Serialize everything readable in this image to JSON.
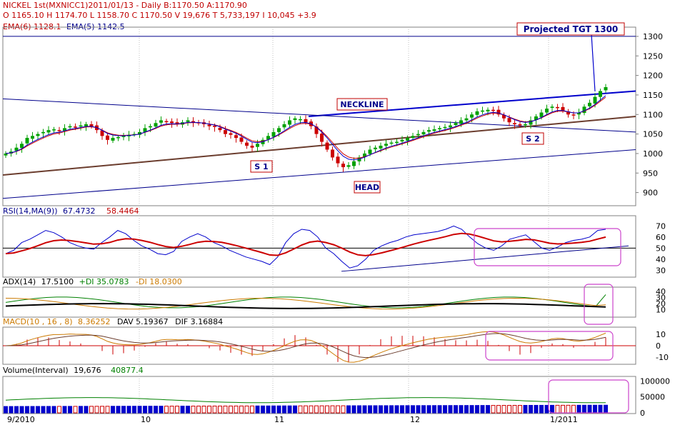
{
  "header": {
    "line1": "NICKEL 1st(MXNICC1)2011/01/13  - Daily B:1170.50 A:1170.90",
    "line2": "O 1165.10 H 1174.70 L 1158.70 C 1170.50 V 19,676 T 5,733,197 I 10,045 +3.9",
    "ema_line_a": "EMA(6) 1128.1",
    "ema_line_b": "EMA(5) 1142.5"
  },
  "price_panel": {
    "annotations": {
      "target": "Projected TGT 1300",
      "neckline": "NECKLINE",
      "s1": "S 1",
      "s2": "S 2",
      "head": "HEAD"
    },
    "y_ticks": [
      "1300",
      "1250",
      "1200",
      "1150",
      "1100",
      "1050",
      "1000",
      "950",
      "900"
    ]
  },
  "rsi_panel": {
    "label": "RSI(14,MA(9))",
    "value_a": "67.4732",
    "value_b": "58.4464",
    "y_ticks": [
      "70",
      "60",
      "50",
      "40",
      "30"
    ]
  },
  "adx_panel": {
    "label": "ADX(14)",
    "adx_value": "17.5100",
    "plus_di": "+DI  35.0783",
    "minus_di": "-DI  18.0300",
    "y_ticks": [
      "40",
      "30",
      "20",
      "10"
    ]
  },
  "macd_panel": {
    "label": "MACD(10 , 16 , 8)",
    "macd_value": "8.36252",
    "dav": "DAV  5.19367",
    "dif": "DIF  3.16884",
    "y_ticks": [
      "10",
      "0",
      "-10"
    ]
  },
  "volume_panel": {
    "label": "Volume(Interval)",
    "value_a": "19,676",
    "value_b": "40877.4",
    "y_ticks": [
      "100000",
      "50000",
      "0"
    ]
  },
  "x_axis": {
    "labels": [
      "9/2010",
      "10",
      "11",
      "12",
      "1/2011"
    ]
  },
  "colors": {
    "up": "#00a000",
    "down": "#cc0000",
    "trend": "#00008b",
    "support": "#6b3d2e",
    "highlight": "#cc44cc"
  },
  "chart_data": {
    "type": "candlestick",
    "title": "NICKEL 1st(MXNICC1) Daily",
    "ylim": [
      870,
      1320
    ],
    "closes": [
      1000,
      1005,
      1015,
      1025,
      1040,
      1045,
      1050,
      1055,
      1060,
      1062,
      1058,
      1065,
      1070,
      1068,
      1072,
      1075,
      1070,
      1060,
      1045,
      1035,
      1040,
      1042,
      1045,
      1048,
      1050,
      1055,
      1065,
      1070,
      1078,
      1085,
      1082,
      1078,
      1075,
      1080,
      1085,
      1080,
      1078,
      1075,
      1070,
      1068,
      1060,
      1050,
      1048,
      1040,
      1030,
      1020,
      1015,
      1025,
      1035,
      1045,
      1055,
      1065,
      1075,
      1085,
      1090,
      1088,
      1080,
      1070,
      1050,
      1030,
      1010,
      990,
      975,
      965,
      970,
      980,
      990,
      1000,
      1010,
      1015,
      1020,
      1025,
      1028,
      1030,
      1035,
      1040,
      1045,
      1050,
      1055,
      1060,
      1062,
      1065,
      1068,
      1072,
      1078,
      1085,
      1090,
      1100,
      1108,
      1110,
      1112,
      1110,
      1100,
      1090,
      1080,
      1075,
      1072,
      1075,
      1085,
      1095,
      1105,
      1115,
      1120,
      1118,
      1110,
      1100,
      1098,
      1105,
      1120,
      1130,
      1145,
      1160,
      1170
    ],
    "rsi": [
      45,
      48,
      55,
      58,
      62,
      66,
      64,
      60,
      55,
      52,
      50,
      49,
      55,
      60,
      66,
      63,
      57,
      52,
      49,
      45,
      44,
      47,
      56,
      60,
      63,
      60,
      55,
      52,
      48,
      45,
      42,
      40,
      38,
      35,
      42,
      55,
      63,
      67,
      66,
      60,
      50,
      45,
      38,
      32,
      34,
      40,
      48,
      52,
      55,
      57,
      60,
      62,
      63,
      64,
      65,
      67,
      70,
      67,
      60,
      54,
      50,
      48,
      52,
      58,
      60,
      62,
      56,
      50,
      48,
      51,
      55,
      57,
      58,
      60,
      66,
      67
    ],
    "volume_scale": [
      0,
      50000,
      100000
    ]
  }
}
